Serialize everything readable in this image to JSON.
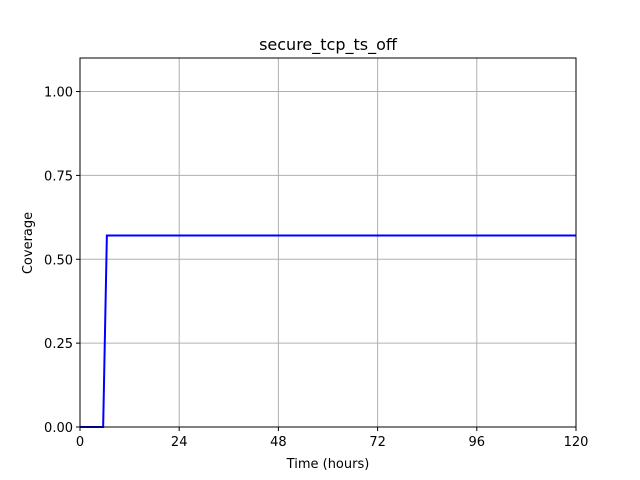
{
  "chart_data": {
    "type": "line",
    "title": "secure_tcp_ts_off",
    "xlabel": "Time (hours)",
    "ylabel": "Coverage",
    "xlim": [
      0,
      120
    ],
    "ylim": [
      0,
      1.1
    ],
    "xticks": [
      0,
      24,
      48,
      72,
      96,
      120
    ],
    "xtick_labels": [
      "0",
      "24",
      "48",
      "72",
      "96",
      "120"
    ],
    "yticks": [
      0.0,
      0.25,
      0.5,
      0.75,
      1.0
    ],
    "ytick_labels": [
      "0.00",
      "0.25",
      "0.50",
      "0.75",
      "1.00"
    ],
    "grid": true,
    "series": [
      {
        "name": "coverage",
        "color": "#0000ff",
        "x": [
          0,
          5.6,
          6.5,
          120
        ],
        "y": [
          0,
          0,
          0.571,
          0.571
        ]
      }
    ]
  }
}
